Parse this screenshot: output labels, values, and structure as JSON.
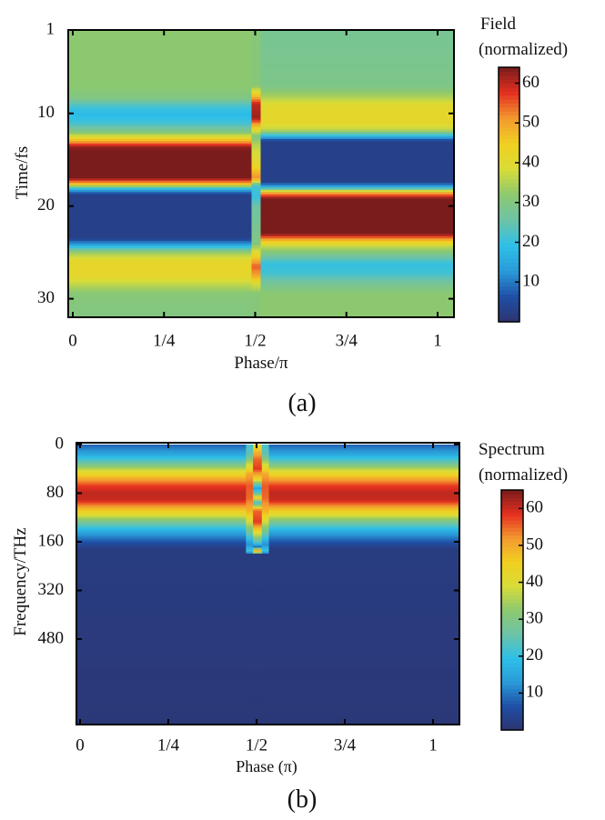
{
  "chart_data": [
    {
      "type": "heatmap",
      "panel_label": "(a)",
      "xlabel": "Phase/π",
      "ylabel": "Time/fs",
      "xlim": [
        -0.012,
        1.045
      ],
      "ylim": [
        1,
        32
      ],
      "x_ticks": [
        {
          "value": 0,
          "label": "0"
        },
        {
          "value": 0.25,
          "label": "1/4"
        },
        {
          "value": 0.5,
          "label": "1/2"
        },
        {
          "value": 0.75,
          "label": "3/4"
        },
        {
          "value": 1,
          "label": "1"
        }
      ],
      "y_ticks": [
        {
          "value": 1,
          "label": "1"
        },
        {
          "value": 10,
          "label": "10"
        },
        {
          "value": 20,
          "label": "20"
        },
        {
          "value": 30,
          "label": "30"
        }
      ],
      "colorbar": {
        "title": "Field",
        "subtitle": "(normalized)",
        "range": [
          0,
          64
        ],
        "ticks": [
          {
            "value": 10,
            "label": "10"
          },
          {
            "value": 20,
            "label": "20"
          },
          {
            "value": 30,
            "label": "30"
          },
          {
            "value": 40,
            "label": "40"
          },
          {
            "value": 50,
            "label": "50"
          },
          {
            "value": 60,
            "label": "60"
          }
        ]
      },
      "regions": [
        {
          "phase_range": [
            -0.012,
            0.49
          ],
          "profile": [
            [
              1,
              32
            ],
            [
              7,
              32
            ],
            [
              8.3,
              30
            ],
            [
              9.2,
              22
            ],
            [
              10,
              18
            ],
            [
              11,
              21
            ],
            [
              12,
              30
            ],
            [
              12.8,
              45
            ],
            [
              13.6,
              62
            ],
            [
              14,
              64
            ],
            [
              17,
              64
            ],
            [
              17.6,
              48
            ],
            [
              18.2,
              16
            ],
            [
              18.8,
              3
            ],
            [
              23.5,
              3
            ],
            [
              24.2,
              15
            ],
            [
              25,
              33
            ],
            [
              26,
              42
            ],
            [
              27.5,
              42
            ],
            [
              28.5,
              36
            ],
            [
              29.5,
              31
            ],
            [
              32,
              30
            ]
          ]
        },
        {
          "phase_range": [
            0.49,
            0.515
          ],
          "profile": [
            [
              1,
              31
            ],
            [
              7,
              31
            ],
            [
              8,
              45
            ],
            [
              9,
              60
            ],
            [
              10.5,
              62
            ],
            [
              11.5,
              45
            ],
            [
              12.5,
              30
            ],
            [
              13.5,
              36
            ],
            [
              15.5,
              42
            ],
            [
              17,
              52
            ],
            [
              17.8,
              22
            ],
            [
              19,
              20
            ],
            [
              20,
              26
            ],
            [
              24,
              30
            ],
            [
              25.2,
              42
            ],
            [
              26.5,
              55
            ],
            [
              27.5,
              50
            ],
            [
              28.5,
              38
            ],
            [
              29.5,
              31
            ],
            [
              32,
              31
            ]
          ]
        },
        {
          "phase_range": [
            0.515,
            1.045
          ],
          "profile": [
            [
              1,
              28
            ],
            [
              7,
              29
            ],
            [
              8.3,
              35
            ],
            [
              9.2,
              41
            ],
            [
              11,
              42
            ],
            [
              11.8,
              36
            ],
            [
              12.4,
              20
            ],
            [
              13,
              3
            ],
            [
              17.4,
              3
            ],
            [
              18,
              18
            ],
            [
              18.6,
              50
            ],
            [
              19.2,
              64
            ],
            [
              23,
              64
            ],
            [
              23.7,
              48
            ],
            [
              24.4,
              36
            ],
            [
              25.3,
              28
            ],
            [
              26.2,
              20
            ],
            [
              27.2,
              21
            ],
            [
              28.2,
              27
            ],
            [
              29.5,
              32
            ],
            [
              32,
              32
            ]
          ]
        }
      ]
    },
    {
      "type": "heatmap",
      "panel_label": "(b)",
      "xlabel": "Phase (π)",
      "ylabel": "Frequency/THz",
      "xlim": [
        -0.01,
        1.073
      ],
      "y_tick_spacing": "non-uniform",
      "y_ticks": [
        {
          "value": 0,
          "label": "0"
        },
        {
          "value": 80,
          "label": "80"
        },
        {
          "value": 160,
          "label": "160"
        },
        {
          "value": 320,
          "label": "320"
        },
        {
          "value": 480,
          "label": "480"
        }
      ],
      "x_ticks": [
        {
          "value": 0,
          "label": "0"
        },
        {
          "value": 0.25,
          "label": "1/4"
        },
        {
          "value": 0.5,
          "label": "1/2"
        },
        {
          "value": 0.75,
          "label": "3/4"
        },
        {
          "value": 1,
          "label": "1"
        }
      ],
      "colorbar": {
        "title": "Spectrum",
        "subtitle": "(normalized)",
        "range": [
          0,
          65
        ],
        "ticks": [
          {
            "value": 10,
            "label": "10"
          },
          {
            "value": 20,
            "label": "20"
          },
          {
            "value": 30,
            "label": "30"
          },
          {
            "value": 40,
            "label": "40"
          },
          {
            "value": 50,
            "label": "50"
          },
          {
            "value": 60,
            "label": "60"
          }
        ]
      },
      "profile_axis": "tick index (0 = 0 THz, 1 = 80, 2 = 160, 3 = 320, 4 = 480)",
      "profile_axis_range": [
        0,
        5.76
      ],
      "regions": [
        {
          "phase_range": [
            -0.01,
            0.47
          ],
          "profile": [
            [
              0,
              8
            ],
            [
              0.2,
              15
            ],
            [
              0.4,
              28
            ],
            [
              0.55,
              40
            ],
            [
              0.7,
              50
            ],
            [
              0.85,
              58
            ],
            [
              1.0,
              61
            ],
            [
              1.15,
              60
            ],
            [
              1.3,
              50
            ],
            [
              1.45,
              40
            ],
            [
              1.6,
              28
            ],
            [
              1.8,
              15
            ],
            [
              2.0,
              7
            ],
            [
              2.15,
              2
            ],
            [
              5.76,
              1
            ]
          ]
        },
        {
          "phase_range": [
            0.47,
            0.49
          ],
          "profile": [
            [
              0,
              22
            ],
            [
              0.2,
              25
            ],
            [
              0.4,
              38
            ],
            [
              0.6,
              50
            ],
            [
              0.85,
              56
            ],
            [
              1.1,
              55
            ],
            [
              1.4,
              48
            ],
            [
              1.6,
              38
            ],
            [
              1.85,
              25
            ],
            [
              2.05,
              12
            ],
            [
              2.2,
              22
            ],
            [
              2.25,
              2
            ],
            [
              5.76,
              1
            ]
          ]
        },
        {
          "phase_range": [
            0.49,
            0.515
          ],
          "profile": [
            [
              0,
              42
            ],
            [
              0.3,
              55
            ],
            [
              0.5,
              58
            ],
            [
              0.7,
              45
            ],
            [
              0.8,
              30
            ],
            [
              0.9,
              15
            ],
            [
              1.0,
              25
            ],
            [
              1.1,
              45
            ],
            [
              1.2,
              20
            ],
            [
              1.35,
              55
            ],
            [
              1.6,
              58
            ],
            [
              1.8,
              42
            ],
            [
              2.0,
              25
            ],
            [
              2.1,
              10
            ],
            [
              2.2,
              58
            ],
            [
              2.25,
              2
            ],
            [
              5.76,
              1
            ]
          ]
        },
        {
          "phase_range": [
            0.515,
            0.535
          ],
          "profile": [
            [
              0,
              22
            ],
            [
              0.2,
              25
            ],
            [
              0.4,
              38
            ],
            [
              0.6,
              50
            ],
            [
              0.85,
              56
            ],
            [
              1.1,
              55
            ],
            [
              1.4,
              48
            ],
            [
              1.6,
              38
            ],
            [
              1.85,
              25
            ],
            [
              2.05,
              12
            ],
            [
              2.2,
              22
            ],
            [
              2.25,
              2
            ],
            [
              5.76,
              1
            ]
          ]
        },
        {
          "phase_range": [
            0.535,
            1.073
          ],
          "profile": [
            [
              0,
              8
            ],
            [
              0.2,
              15
            ],
            [
              0.4,
              28
            ],
            [
              0.55,
              40
            ],
            [
              0.7,
              50
            ],
            [
              0.85,
              58
            ],
            [
              1.0,
              61
            ],
            [
              1.15,
              60
            ],
            [
              1.3,
              50
            ],
            [
              1.45,
              40
            ],
            [
              1.6,
              28
            ],
            [
              1.8,
              15
            ],
            [
              2.0,
              7
            ],
            [
              2.15,
              2
            ],
            [
              5.76,
              1
            ]
          ]
        }
      ]
    }
  ],
  "colormap": [
    "#2d3470",
    "#1f4fa5",
    "#2a9ad8",
    "#2ec0e8",
    "#6cc3a8",
    "#8cc870",
    "#d8dc38",
    "#f0d020",
    "#f39a30",
    "#e53020",
    "#7a1c1c"
  ]
}
